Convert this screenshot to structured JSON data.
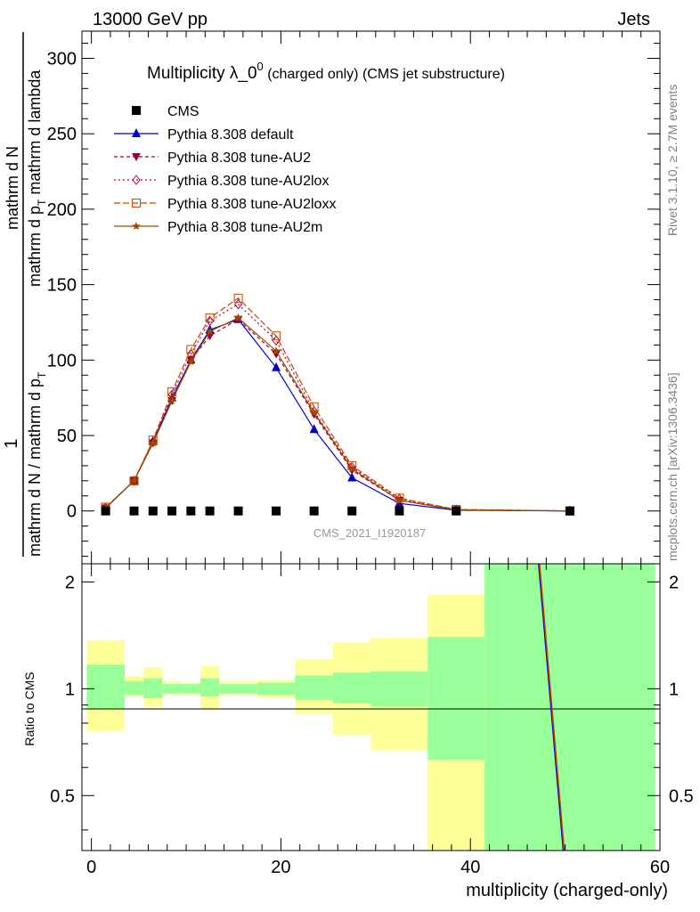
{
  "header": {
    "left": "13000 GeV pp",
    "right": "Jets"
  },
  "side_text": {
    "rivet": "Rivet 3.1.10, ≥ 2.7M events",
    "mcplots": "mcplots.cern.ch [arXiv:1306.3436]"
  },
  "watermark": "CMS_2021_I1920187",
  "colors": {
    "cms": "#000000",
    "default": "#0000cc",
    "au2": "#990033",
    "au2lox": "#b3003c",
    "au2loxx": "#cc4400",
    "au2m": "#994c00",
    "band_inner": "#99ff99",
    "band_outer": "#ffff99"
  },
  "chart_data": [
    {
      "type": "line",
      "title_main": "Multiplicity λ_0",
      "title_sup": "0",
      "title_rest": " (charged only) (CMS jet substructure)",
      "ylabel_top": "1",
      "ylabel_line1": "mathrm d N / mathrm d p",
      "ylabel_sub": "T",
      "ylabel_line2": "mathrm d N",
      "ylabel_line3": "mathrm d p",
      "ylabel_line3b": " mathrm d lambda",
      "ylim": [
        -35,
        318
      ],
      "yticks": [
        0,
        50,
        100,
        150,
        200,
        250,
        300
      ],
      "xlim": [
        -1,
        60
      ],
      "series": [
        {
          "name": "CMS",
          "key": "cms",
          "x": [
            1.5,
            4.5,
            6.5,
            8.5,
            10.5,
            12.5,
            15.5,
            19.5,
            23.5,
            27.5,
            32.5,
            38.5,
            50.5
          ],
          "y": [
            0,
            0,
            0,
            0,
            0,
            0,
            0,
            0,
            0,
            0,
            0,
            0,
            0
          ]
        },
        {
          "name": "Pythia 8.308 default",
          "key": "default",
          "x": [
            1.5,
            4.5,
            6.5,
            8.5,
            10.5,
            12.5,
            15.5,
            19.5,
            23.5,
            27.5,
            32.5,
            38.5,
            50.5
          ],
          "y": [
            2,
            20,
            46,
            75,
            100,
            120,
            127,
            95,
            54,
            22,
            5,
            0.5,
            0
          ]
        },
        {
          "name": "Pythia 8.308 tune-AU2",
          "key": "au2",
          "x": [
            1.5,
            4.5,
            6.5,
            8.5,
            10.5,
            12.5,
            15.5,
            19.5,
            23.5,
            27.5,
            32.5,
            38.5,
            50.5
          ],
          "y": [
            2,
            20,
            45,
            73,
            100,
            116,
            127,
            104,
            64,
            27,
            7,
            0.8,
            0
          ]
        },
        {
          "name": "Pythia 8.308 tune-AU2lox",
          "key": "au2lox",
          "x": [
            1.5,
            4.5,
            6.5,
            8.5,
            10.5,
            12.5,
            15.5,
            19.5,
            23.5,
            27.5,
            32.5,
            38.5,
            50.5
          ],
          "y": [
            2,
            20,
            46,
            77,
            104,
            126,
            137,
            113,
            66,
            29,
            8,
            0.9,
            0
          ]
        },
        {
          "name": "Pythia 8.308 tune-AU2loxx",
          "key": "au2loxx",
          "x": [
            1.5,
            4.5,
            6.5,
            8.5,
            10.5,
            12.5,
            15.5,
            19.5,
            23.5,
            27.5,
            32.5,
            38.5,
            50.5
          ],
          "y": [
            2.5,
            20,
            47,
            79,
            107,
            128,
            141,
            116,
            69,
            30,
            8.5,
            1,
            0
          ]
        },
        {
          "name": "Pythia 8.308 tune-AU2m",
          "key": "au2m",
          "x": [
            1.5,
            4.5,
            6.5,
            8.5,
            10.5,
            12.5,
            15.5,
            19.5,
            23.5,
            27.5,
            32.5,
            38.5,
            50.5
          ],
          "y": [
            2,
            20,
            45,
            73,
            99,
            119,
            128,
            106,
            65,
            28,
            7,
            0.8,
            0
          ]
        }
      ]
    },
    {
      "type": "line",
      "ylabel": "Ratio to CMS",
      "xlabel": "multiplicity (charged-only)",
      "ylim": [
        0.35,
        2.25
      ],
      "yticks": [
        0.5,
        1,
        2
      ],
      "yticklabels": [
        "0.5",
        "1",
        "2"
      ],
      "xticks": [
        0,
        20,
        40,
        60
      ],
      "xlim": [
        -1,
        60
      ],
      "bands": {
        "edges": [
          -0.5,
          3.5,
          5.5,
          7.5,
          9.5,
          11.5,
          13.5,
          17.5,
          21.5,
          25.5,
          29.5,
          35.5,
          41.5,
          59.5
        ],
        "inner_lo": [
          0.88,
          0.96,
          0.94,
          0.97,
          0.97,
          0.95,
          0.97,
          0.96,
          0.93,
          0.91,
          0.89,
          0.63,
          0.35
        ],
        "inner_hi": [
          1.17,
          1.05,
          1.07,
          1.03,
          1.03,
          1.07,
          1.03,
          1.04,
          1.09,
          1.11,
          1.12,
          1.4,
          2.25
        ],
        "outer_lo": [
          0.76,
          0.95,
          0.89,
          0.96,
          0.96,
          0.88,
          0.96,
          0.94,
          0.85,
          0.74,
          0.67,
          0.35,
          0.35
        ],
        "outer_hi": [
          1.37,
          1.08,
          1.15,
          1.05,
          1.04,
          1.16,
          1.05,
          1.06,
          1.21,
          1.35,
          1.39,
          1.84,
          2.25
        ]
      },
      "ratio_lines": [
        {
          "key": "default",
          "x": [
            47.2,
            49.8
          ],
          "y": [
            2.25,
            0.35
          ]
        },
        {
          "key": "au2loxx",
          "x": [
            47.3,
            49.9
          ],
          "y": [
            2.25,
            0.35
          ]
        }
      ]
    }
  ]
}
